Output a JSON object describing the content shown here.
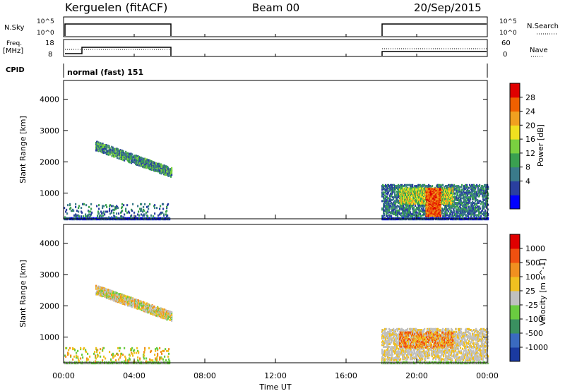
{
  "header": {
    "station": "Kerguelen (fitACF)",
    "beam": "Beam 00",
    "date": "20/Sep/2015"
  },
  "panels": {
    "nsky_label": "N.Sky",
    "nsky_ticks": [
      "10^5",
      "10^0"
    ],
    "nsearch_label": "N.Search",
    "nsearch_ticks": [
      "10^5",
      "10^0"
    ],
    "freq_label_1": "Freq.",
    "freq_label_2": "[MHz]",
    "freq_ticks": [
      "18",
      "8"
    ],
    "nave_label": "Nave",
    "nave_ticks": [
      "60",
      "0"
    ],
    "cpid_label": "CPID",
    "cpid_text": "normal (fast) 151"
  },
  "chart_data": [
    {
      "type": "heatmap",
      "name": "power",
      "ylabel": "Slant Range [km]",
      "y_ticks": [
        1000,
        2000,
        3000,
        4000
      ],
      "ylim": [
        180,
        4600
      ],
      "x_ticks": [
        "00:00",
        "04:00",
        "08:00",
        "12:00",
        "16:00",
        "20:00",
        "00:00"
      ],
      "xlim_hours": [
        0,
        24
      ],
      "colorbar": {
        "label": "Power [dB]",
        "ticks": [
          "28",
          "24",
          "20",
          "16",
          "12",
          "8",
          "4"
        ],
        "colors": [
          "#0000ff",
          "#2a3f9f",
          "#3a7a8a",
          "#3aa050",
          "#7ad040",
          "#f0e020",
          "#f0a020",
          "#f06000",
          "#e00000"
        ]
      }
    },
    {
      "type": "heatmap",
      "name": "velocity",
      "ylabel": "Slant Range [km]",
      "y_ticks": [
        1000,
        2000,
        3000,
        4000
      ],
      "ylim": [
        180,
        4600
      ],
      "x_ticks": [
        "00:00",
        "04:00",
        "08:00",
        "12:00",
        "16:00",
        "20:00",
        "00:00"
      ],
      "xlabel": "Time UT",
      "xlim_hours": [
        0,
        24
      ],
      "colorbar": {
        "label": "Velocity [m s^-1]",
        "ticks": [
          "1000",
          "500",
          "100",
          "25",
          "-25",
          "-100",
          "-500",
          "-1000"
        ],
        "colors": [
          "#1a3aa0",
          "#3a6ac0",
          "#3a9060",
          "#6acc40",
          "#c0c0c0",
          "#f0c020",
          "#f09020",
          "#f05010",
          "#e00000"
        ]
      }
    }
  ]
}
